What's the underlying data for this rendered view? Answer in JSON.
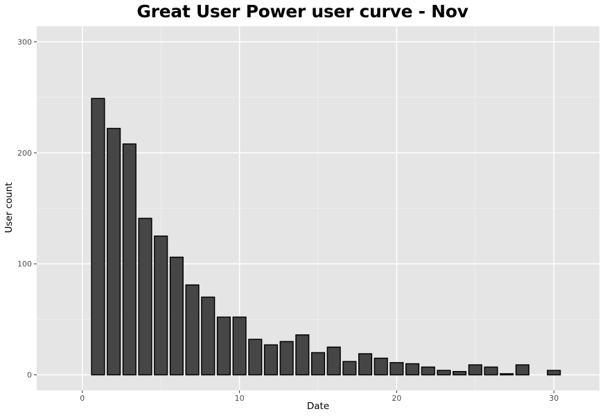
{
  "chart_data": {
    "type": "bar",
    "title": "Great User Power user curve - Nov",
    "xlabel": "Date",
    "ylabel": "User count",
    "x": [
      1,
      2,
      3,
      4,
      5,
      6,
      7,
      8,
      9,
      10,
      11,
      12,
      13,
      14,
      15,
      16,
      17,
      18,
      19,
      20,
      21,
      22,
      23,
      24,
      25,
      26,
      27,
      28,
      30
    ],
    "values": [
      249,
      222,
      208,
      141,
      125,
      106,
      81,
      70,
      52,
      52,
      32,
      27,
      30,
      36,
      20,
      25,
      12,
      19,
      15,
      11,
      10,
      7,
      4,
      3,
      9,
      7,
      1,
      9,
      4
    ],
    "xlim": [
      -2.9,
      32.9
    ],
    "ylim": [
      -14,
      314
    ],
    "x_ticks": [
      0,
      10,
      20,
      30
    ],
    "y_ticks": [
      0,
      100,
      200,
      300
    ],
    "grid": true,
    "colors": {
      "bar_fill": "#464646",
      "bar_stroke": "#000000",
      "panel_background": "#e5e5e5",
      "grid_major": "#ffffff",
      "grid_minor": "#f2f2f2"
    }
  }
}
